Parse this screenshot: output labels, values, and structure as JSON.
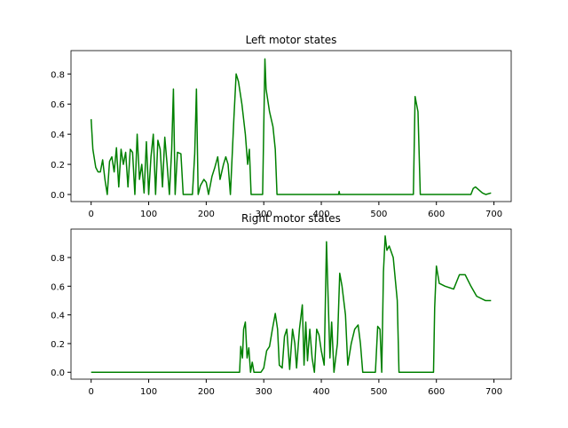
{
  "chart_data": [
    {
      "type": "line",
      "title": "Left motor states",
      "color": "#008000",
      "xlim": [
        -35,
        730
      ],
      "ylim": [
        -0.047,
        0.955
      ],
      "xticks": [
        0,
        100,
        200,
        300,
        400,
        500,
        600,
        700
      ],
      "yticks": [
        {
          "value": 0,
          "label": "0.0"
        },
        {
          "value": 0.2,
          "label": "0.2"
        },
        {
          "value": 0.4,
          "label": "0.4"
        },
        {
          "value": 0.6,
          "label": "0.6"
        },
        {
          "value": 0.8,
          "label": "0.8"
        }
      ],
      "x": [
        0,
        3,
        8,
        12,
        16,
        20,
        24,
        28,
        32,
        36,
        40,
        44,
        48,
        52,
        56,
        60,
        64,
        68,
        72,
        76,
        80,
        84,
        88,
        92,
        96,
        100,
        104,
        108,
        112,
        116,
        120,
        124,
        128,
        132,
        136,
        140,
        143,
        146,
        150,
        156,
        160,
        176,
        180,
        183,
        186,
        190,
        196,
        200,
        204,
        210,
        215,
        220,
        224,
        230,
        234,
        238,
        242,
        248,
        252,
        256,
        262,
        268,
        272,
        275,
        278,
        298,
        302,
        304,
        310,
        316,
        320,
        323,
        430,
        431,
        432,
        560,
        563,
        568,
        572,
        660,
        664,
        668,
        680,
        686,
        695
      ],
      "values": [
        0.5,
        0.3,
        0.18,
        0.15,
        0.15,
        0.23,
        0.1,
        0.0,
        0.22,
        0.25,
        0.15,
        0.31,
        0.05,
        0.3,
        0.2,
        0.28,
        0.05,
        0.3,
        0.28,
        0.0,
        0.4,
        0.1,
        0.2,
        0.01,
        0.35,
        0.0,
        0.25,
        0.4,
        0.0,
        0.36,
        0.3,
        0.05,
        0.38,
        0.2,
        0.0,
        0.3,
        0.7,
        0.0,
        0.28,
        0.27,
        0.0,
        0.0,
        0.27,
        0.7,
        0.0,
        0.06,
        0.1,
        0.08,
        0.0,
        0.12,
        0.18,
        0.25,
        0.1,
        0.2,
        0.25,
        0.2,
        0.0,
        0.5,
        0.8,
        0.75,
        0.6,
        0.4,
        0.2,
        0.3,
        0.0,
        0.0,
        0.9,
        0.7,
        0.55,
        0.45,
        0.3,
        0.0,
        0.0,
        0.02,
        0.0,
        0.0,
        0.65,
        0.55,
        0.0,
        0.0,
        0.04,
        0.05,
        0.01,
        0.0,
        0.01
      ]
    },
    {
      "type": "line",
      "title": "Right motor states",
      "color": "#008000",
      "xlim": [
        -35,
        730
      ],
      "ylim": [
        -0.048,
        0.998
      ],
      "xticks": [
        0,
        100,
        200,
        300,
        400,
        500,
        600,
        700
      ],
      "yticks": [
        {
          "value": 0,
          "label": "0.0"
        },
        {
          "value": 0.2,
          "label": "0.2"
        },
        {
          "value": 0.4,
          "label": "0.4"
        },
        {
          "value": 0.6,
          "label": "0.6"
        },
        {
          "value": 0.8,
          "label": "0.8"
        }
      ],
      "x": [
        0,
        258,
        260,
        263,
        265,
        268,
        271,
        274,
        277,
        280,
        283,
        295,
        300,
        305,
        310,
        315,
        320,
        324,
        327,
        332,
        336,
        340,
        345,
        350,
        354,
        357,
        362,
        367,
        370,
        373,
        376,
        380,
        384,
        388,
        392,
        396,
        400,
        405,
        409,
        412,
        415,
        418,
        422,
        428,
        432,
        436,
        442,
        446,
        452,
        458,
        464,
        468,
        472,
        494,
        498,
        502,
        505,
        508,
        511,
        514,
        518,
        525,
        532,
        535,
        595,
        597,
        600,
        605,
        615,
        630,
        640,
        650,
        660,
        670,
        685,
        695
      ],
      "values": [
        0,
        0,
        0.18,
        0.1,
        0.3,
        0.35,
        0.1,
        0.17,
        0.0,
        0.07,
        0.0,
        0.0,
        0.03,
        0.15,
        0.18,
        0.3,
        0.41,
        0.3,
        0.05,
        0.03,
        0.25,
        0.3,
        0.02,
        0.3,
        0.2,
        0.03,
        0.3,
        0.47,
        0.05,
        0.35,
        0.08,
        0.3,
        0.1,
        0.0,
        0.3,
        0.26,
        0.15,
        0.05,
        0.91,
        0.5,
        0.1,
        0.35,
        0.0,
        0.2,
        0.69,
        0.6,
        0.4,
        0.05,
        0.2,
        0.3,
        0.33,
        0.2,
        0.0,
        0.0,
        0.32,
        0.3,
        0.0,
        0.7,
        0.95,
        0.85,
        0.88,
        0.8,
        0.5,
        0.0,
        0.0,
        0.45,
        0.74,
        0.62,
        0.6,
        0.58,
        0.68,
        0.68,
        0.6,
        0.53,
        0.5,
        0.5
      ]
    }
  ]
}
